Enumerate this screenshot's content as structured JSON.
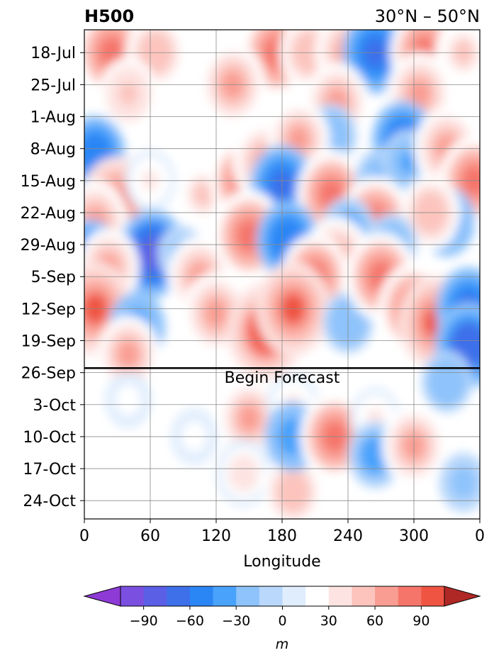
{
  "chart_data": {
    "type": "heatmap",
    "title_left": "H500",
    "title_right": "30°N – 50°N",
    "xlabel": "Longitude",
    "ylabel": "",
    "x_ticks": [
      "0",
      "60",
      "120",
      "180",
      "240",
      "300",
      "0"
    ],
    "x_tick_values": [
      0,
      60,
      120,
      180,
      240,
      300,
      360
    ],
    "y_ticks": [
      "18-Jul",
      "25-Jul",
      "1-Aug",
      "8-Aug",
      "15-Aug",
      "22-Aug",
      "29-Aug",
      "5-Sep",
      "12-Sep",
      "19-Sep",
      "26-Sep",
      "3-Oct",
      "10-Oct",
      "17-Oct",
      "24-Oct"
    ],
    "y_range": [
      "13-Jul",
      "28-Oct"
    ],
    "x_range": [
      0,
      360
    ],
    "forecast_line": {
      "date": "25-Sep",
      "label": "Begin Forecast"
    },
    "grid": true,
    "colorbar": {
      "label": "m",
      "orientation": "horizontal",
      "extend": "both",
      "ticks": [
        "−90",
        "−60",
        "−30",
        "0",
        "30",
        "60",
        "90"
      ],
      "tick_values": [
        -90,
        -60,
        -30,
        0,
        30,
        60,
        90
      ],
      "levels": [
        -105,
        -90,
        -75,
        -60,
        -45,
        -30,
        -15,
        0,
        15,
        30,
        45,
        60,
        75,
        90,
        105
      ],
      "colors": [
        "#8e3ad6",
        "#7b4fe0",
        "#5b5fe6",
        "#3e70ea",
        "#2b86f5",
        "#49a2fb",
        "#8ec3fb",
        "#b9d8fb",
        "#dfedfd",
        "#ffffff",
        "#fde4e2",
        "#fcc4bd",
        "#f99d92",
        "#f5756a",
        "#ef5443",
        "#dc3f33",
        "#c7322c",
        "#b02826"
      ]
    },
    "field": {
      "units": "m",
      "anomalies": [
        {
          "lon": 25,
          "date": "18-Jul",
          "value": 85
        },
        {
          "lon": 65,
          "date": "18-Jul",
          "value": 55
        },
        {
          "lon": 175,
          "date": "18-Jul",
          "value": 85
        },
        {
          "lon": 205,
          "date": "18-Jul",
          "value": 55
        },
        {
          "lon": 240,
          "date": "18-Jul",
          "value": 70
        },
        {
          "lon": 265,
          "date": "18-Jul",
          "value": -70
        },
        {
          "lon": 310,
          "date": "18-Jul",
          "value": 80
        },
        {
          "lon": 345,
          "date": "18-Jul",
          "value": 45
        },
        {
          "lon": 135,
          "date": "25-Jul",
          "value": 70
        },
        {
          "lon": 40,
          "date": "27-Jul",
          "value": 50
        },
        {
          "lon": 230,
          "date": "29-Jul",
          "value": 65
        },
        {
          "lon": 305,
          "date": "27-Jul",
          "value": 70
        },
        {
          "lon": 290,
          "date": "6-Aug",
          "value": -60
        },
        {
          "lon": 10,
          "date": "9-Aug",
          "value": -55
        },
        {
          "lon": 225,
          "date": "5-Aug",
          "value": -30
        },
        {
          "lon": 30,
          "date": "20-Aug",
          "value": 90
        },
        {
          "lon": 10,
          "date": "24-Aug",
          "value": 70
        },
        {
          "lon": 60,
          "date": "15-Aug",
          "value": 30
        },
        {
          "lon": 108,
          "date": "18-Aug",
          "value": 45
        },
        {
          "lon": 145,
          "date": "15-Aug",
          "value": 75
        },
        {
          "lon": 165,
          "date": "11-Aug",
          "value": 70
        },
        {
          "lon": 195,
          "date": "6-Aug",
          "value": 60
        },
        {
          "lon": 180,
          "date": "16-Aug",
          "value": -65
        },
        {
          "lon": 225,
          "date": "18-Aug",
          "value": 80
        },
        {
          "lon": 270,
          "date": "15-Aug",
          "value": -35
        },
        {
          "lon": 295,
          "date": "11-Aug",
          "value": -35
        },
        {
          "lon": 330,
          "date": "8-Aug",
          "value": 70
        },
        {
          "lon": 355,
          "date": "15-Aug",
          "value": 80
        },
        {
          "lon": 330,
          "date": "24-Aug",
          "value": -45
        },
        {
          "lon": 265,
          "date": "24-Aug",
          "value": 85
        },
        {
          "lon": 315,
          "date": "22-Aug",
          "value": 55
        },
        {
          "lon": 240,
          "date": "26-Aug",
          "value": -40
        },
        {
          "lon": 150,
          "date": "27-Aug",
          "value": 85
        },
        {
          "lon": 185,
          "date": "28-Aug",
          "value": -60
        },
        {
          "lon": 230,
          "date": "1-Sep",
          "value": 70
        },
        {
          "lon": 280,
          "date": "29-Aug",
          "value": -30
        },
        {
          "lon": 5,
          "date": "1-Sep",
          "value": -60
        },
        {
          "lon": 62,
          "date": "31-Aug",
          "value": -80
        },
        {
          "lon": 88,
          "date": "31-Aug",
          "value": -20
        },
        {
          "lon": 22,
          "date": "3-Sep",
          "value": 60
        },
        {
          "lon": 105,
          "date": "5-Sep",
          "value": 65
        },
        {
          "lon": 210,
          "date": "5-Sep",
          "value": 75
        },
        {
          "lon": 10,
          "date": "12-Sep",
          "value": 90
        },
        {
          "lon": 48,
          "date": "16-Sep",
          "value": -45
        },
        {
          "lon": 120,
          "date": "13-Sep",
          "value": 70
        },
        {
          "lon": 165,
          "date": "17-Sep",
          "value": 95
        },
        {
          "lon": 190,
          "date": "12-Sep",
          "value": 90
        },
        {
          "lon": 240,
          "date": "15-Sep",
          "value": -30
        },
        {
          "lon": 270,
          "date": "5-Sep",
          "value": 80
        },
        {
          "lon": 300,
          "date": "12-Sep",
          "value": 85
        },
        {
          "lon": 320,
          "date": "15-Sep",
          "value": 90
        },
        {
          "lon": 350,
          "date": "12-Sep",
          "value": -70
        },
        {
          "lon": 350,
          "date": "20-Sep",
          "value": -75
        },
        {
          "lon": 40,
          "date": "22-Sep",
          "value": 60
        },
        {
          "lon": 330,
          "date": "28-Sep",
          "value": -30
        },
        {
          "lon": 100,
          "date": "10-Oct",
          "value": 20
        },
        {
          "lon": 40,
          "date": "2-Oct",
          "value": 20
        },
        {
          "lon": 150,
          "date": "6-Oct",
          "value": 60
        },
        {
          "lon": 145,
          "date": "18-Oct",
          "value": 40
        },
        {
          "lon": 190,
          "date": "22-Oct",
          "value": 55
        },
        {
          "lon": 190,
          "date": "3-Oct",
          "value": 35
        },
        {
          "lon": 190,
          "date": "10-Oct",
          "value": -45
        },
        {
          "lon": 228,
          "date": "10-Oct",
          "value": 80
        },
        {
          "lon": 265,
          "date": "6-Oct",
          "value": 30
        },
        {
          "lon": 265,
          "date": "14-Oct",
          "value": -40
        },
        {
          "lon": 300,
          "date": "12-Oct",
          "value": 65
        },
        {
          "lon": 345,
          "date": "20-Oct",
          "value": -25
        }
      ]
    }
  }
}
